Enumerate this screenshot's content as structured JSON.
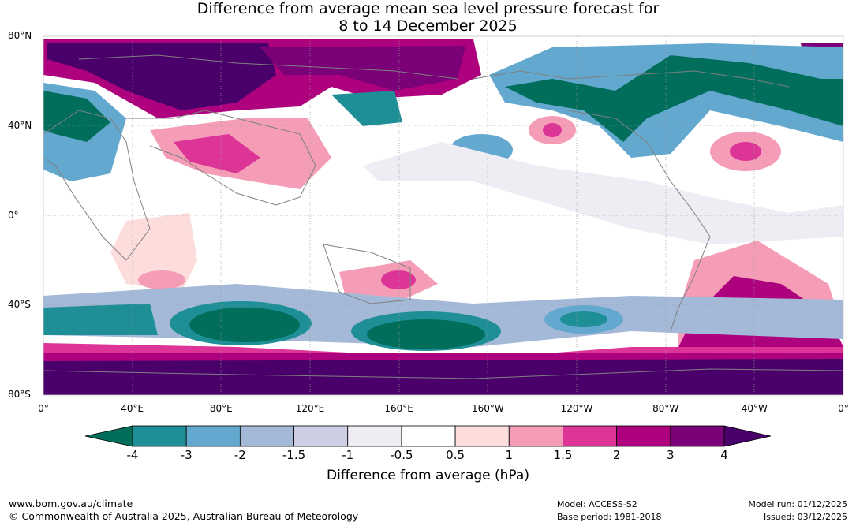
{
  "title_line1": "Difference from average mean sea level pressure forecast for",
  "title_line2": "8 to 14 December 2025",
  "map": {
    "lat_labels": [
      "80°N",
      "40°N",
      "0°",
      "40°S",
      "80°S"
    ],
    "lat_values": [
      80,
      40,
      0,
      -40,
      -80
    ],
    "lon_labels": [
      "0°",
      "40°E",
      "80°E",
      "120°E",
      "160°E",
      "160°W",
      "120°W",
      "80°W",
      "40°W",
      "0°"
    ],
    "lon_values": [
      0,
      40,
      80,
      120,
      160,
      200,
      240,
      280,
      320,
      360
    ]
  },
  "colorbar": {
    "ticks": [
      "-4",
      "-3",
      "-2",
      "-1.5",
      "-1",
      "-0.5",
      "0.5",
      "1",
      "1.5",
      "2",
      "3",
      "4"
    ],
    "colors": [
      "#006e5a",
      "#1e8f96",
      "#63a8cf",
      "#a3b9d7",
      "#cdcde3",
      "#efecf4",
      "#ffffff",
      "#fddcdc",
      "#f59db6",
      "#dd3497",
      "#ae017e",
      "#7a0177",
      "#49006a"
    ],
    "label": "Difference from average (hPa)"
  },
  "footer": {
    "url": "www.bom.gov.au/climate",
    "copyright": "© Commonwealth of Australia 2025, Australian Bureau of Meteorology",
    "model": "Model: ACCESS-S2",
    "base_period": "Base period: 1981-2018",
    "model_run": "Model run: 01/12/2025",
    "issued": "Issued: 03/12/2025"
  }
}
